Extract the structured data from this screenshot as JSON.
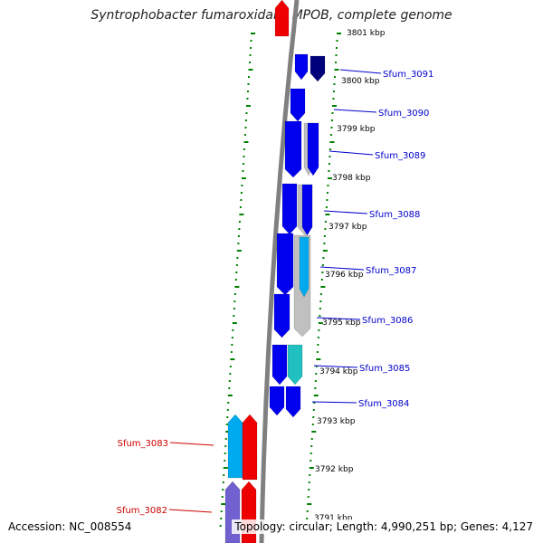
{
  "title": "Syntrophobacter fumaroxidans MPOB, complete genome",
  "accession": "Accession: NC_008554",
  "topology": "Topology: circular; Length: 4,990,251 bp; Genes: 4,127",
  "colors": {
    "forward": "#0000ee",
    "forward_dark": "#00007a",
    "reverse": "#ee0000",
    "light_blue": "#00aaee",
    "cyan": "#20c0c0",
    "purple": "#7060d0",
    "gray": "#c0c0c0",
    "backbone": "#808080",
    "ticks": "#008000",
    "label_blue": "#0000cc",
    "label_red": "#cc0000"
  },
  "ruler": [
    {
      "label": "3801 kbp"
    },
    {
      "label": "3800 kbp"
    },
    {
      "label": "3799 kbp"
    },
    {
      "label": "3798 kbp"
    },
    {
      "label": "3797 kbp"
    },
    {
      "label": "3796 kbp"
    },
    {
      "label": "3795 kbp"
    },
    {
      "label": "3794 kbp"
    },
    {
      "label": "3793 kbp"
    },
    {
      "label": "3792 kbp"
    },
    {
      "label": "3791 kbp"
    }
  ],
  "genes": [
    {
      "id": "Sfum_3091",
      "strand": "forward",
      "color_key": "label_blue"
    },
    {
      "id": "Sfum_3090",
      "strand": "forward",
      "color_key": "label_blue"
    },
    {
      "id": "Sfum_3089",
      "strand": "forward",
      "color_key": "label_blue"
    },
    {
      "id": "Sfum_3088",
      "strand": "forward",
      "color_key": "label_blue"
    },
    {
      "id": "Sfum_3087",
      "strand": "forward",
      "color_key": "label_blue"
    },
    {
      "id": "Sfum_3086",
      "strand": "forward",
      "color_key": "label_blue"
    },
    {
      "id": "Sfum_3085",
      "strand": "forward",
      "color_key": "label_blue"
    },
    {
      "id": "Sfum_3084",
      "strand": "forward",
      "color_key": "label_blue"
    },
    {
      "id": "Sfum_3083",
      "strand": "reverse",
      "color_key": "label_red"
    },
    {
      "id": "Sfum_3082",
      "strand": "reverse",
      "color_key": "label_red"
    }
  ]
}
